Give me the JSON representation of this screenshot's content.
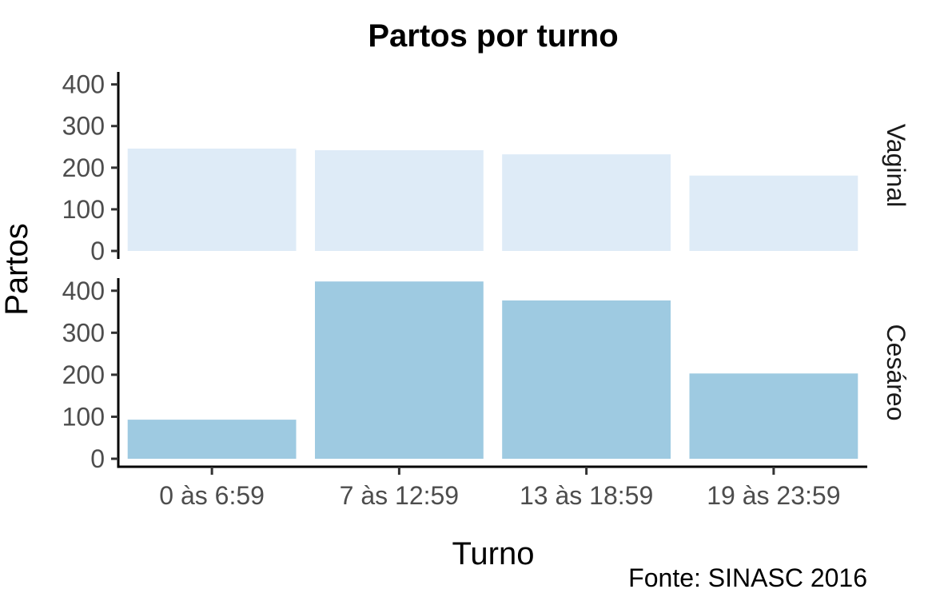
{
  "chart_data": {
    "type": "bar",
    "title": "Partos por turno",
    "xlabel": "Turno",
    "ylabel": "Partos",
    "caption": "Fonte: SINASC 2016",
    "categories": [
      "0 às 6:59",
      "7 às 12:59",
      "13 às 18:59",
      "19 às 23:59"
    ],
    "ylim": [
      0,
      430
    ],
    "yticks": [
      0,
      100,
      200,
      300,
      400
    ],
    "facets": [
      {
        "name": "Vaginal",
        "color": "#deebf7",
        "values": [
          246,
          242,
          232,
          181
        ]
      },
      {
        "name": "Cesáreo",
        "color": "#9ecae1",
        "values": [
          93,
          422,
          377,
          203
        ]
      }
    ],
    "grid": false,
    "legend": "none"
  }
}
